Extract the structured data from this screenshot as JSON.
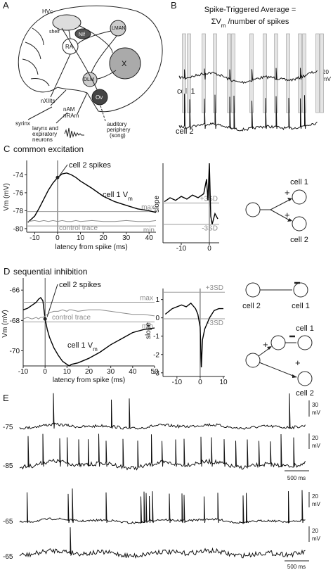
{
  "panel_a": {
    "label": "A",
    "regions": {
      "hvc": "HVc",
      "shelf": "shelf",
      "nif": "NIf",
      "lman": "LMAN",
      "ra": "RA",
      "x": "X",
      "dlm": "DLM",
      "ov": "Ov",
      "nxiits": "nXIIts",
      "nam": "nAM",
      "nram": "nRAm"
    },
    "syrinx": "syrinx",
    "larynx": [
      "larynx and",
      "expiratory",
      "neurons"
    ],
    "auditory": [
      "auditory",
      "periphery",
      "(song)"
    ]
  },
  "panel_b": {
    "label": "B",
    "title": "Spike-Triggered Average =",
    "formula": {
      "main": "ΣV",
      "sub": "m",
      "rest": " /number of spikes"
    },
    "cells": [
      "cell 1",
      "cell 2"
    ],
    "scale": {
      "value": "20",
      "unit": "mV"
    }
  },
  "chart_data": [
    {
      "type": "line",
      "panel": "C",
      "title": "common excitation",
      "annotation": "cell 2 spikes",
      "xlabel": "latency from spike (ms)",
      "ylabel": "Vm (mV)",
      "x": [
        -13,
        -10,
        -8,
        -6,
        -4,
        -2,
        0,
        2,
        4,
        6,
        8,
        10,
        15,
        20,
        25,
        30,
        35,
        40,
        43
      ],
      "series": [
        {
          "name": "cell 1 V",
          "name_subscript": "m",
          "color": "#000000",
          "values": [
            -79.3,
            -78.6,
            -77.7,
            -76.7,
            -75.7,
            -74.9,
            -74.3,
            -73.9,
            -73.8,
            -74.0,
            -74.3,
            -74.7,
            -75.5,
            -76.4,
            -77.0,
            -77.4,
            -77.8,
            -78.0,
            -78.2
          ]
        },
        {
          "name": "control trace",
          "color": "#8c8c8c",
          "values": [
            -79.2,
            -79.1,
            -79.2,
            -79.1,
            -79.2,
            -79.1,
            -79.2,
            -79.1,
            -79.2,
            -79.2,
            -79.1,
            -79.2,
            -79.1,
            -79.2,
            -79.2,
            -79.1,
            -79.2,
            -79.2,
            -79.1
          ]
        }
      ],
      "reference_lines": [
        {
          "value": -78.1,
          "label": "max"
        },
        {
          "value": -79.7,
          "label": "min"
        }
      ],
      "xlim": [
        -13.5,
        43
      ],
      "xticks": [
        -10,
        0,
        10,
        20,
        30,
        40
      ],
      "ylim": [
        -80.4,
        -72.4
      ],
      "yticks": [
        -74,
        -76,
        -78,
        -80
      ]
    },
    {
      "type": "line",
      "ylabel": "slope",
      "x": [
        -16,
        -14,
        -12,
        -10,
        -8,
        -6,
        -4,
        -2,
        -1,
        -0.5,
        0,
        0.5,
        1,
        2,
        3
      ],
      "series": [
        {
          "color": "#000000",
          "values": [
            0.05,
            0.2,
            0.1,
            0.25,
            0.15,
            0.3,
            0.2,
            0.35,
            0.9,
            0.1,
            1.5,
            -0.5,
            -0.8,
            -0.4,
            -0.6
          ]
        }
      ],
      "reference_lines": [
        {
          "value": 0.0,
          "label": "+3SD"
        },
        {
          "value": -0.8,
          "label": "-3SD"
        }
      ],
      "xlim": [
        -16.5,
        3.5
      ],
      "xticks": [
        -10,
        0
      ],
      "ylim": [
        -1.5,
        1.5
      ]
    },
    {
      "type": "line",
      "panel": "D",
      "title": "sequential inhibition",
      "annotation": "cell 2 spikes",
      "xlabel": "latency from spike (ms)",
      "ylabel": "Vm (mV)",
      "x": [
        -10,
        -8,
        -6,
        -4,
        -3,
        -2,
        -1,
        0,
        1,
        2,
        4,
        6,
        8,
        10,
        11,
        12,
        15,
        20,
        25,
        30,
        35,
        40,
        45,
        50
      ],
      "series": [
        {
          "name": "cell 1 V",
          "name_subscript": "m",
          "color": "#000000",
          "values": [
            -67.3,
            -67.2,
            -67.0,
            -66.8,
            -66.6,
            -66.5,
            -66.7,
            -67.9,
            -68.6,
            -69.1,
            -69.8,
            -70.3,
            -70.7,
            -70.9,
            -71.0,
            -70.9,
            -70.8,
            -70.5,
            -70.1,
            -69.6,
            -69.2,
            -68.8,
            -68.6,
            -68.5
          ]
        },
        {
          "name": "control trace",
          "color": "#8c8c8c",
          "values": [
            -67.9,
            -67.8,
            -67.9,
            -67.8,
            -67.9,
            -67.8,
            -67.8,
            -67.7,
            -67.6,
            -67.5,
            -67.4,
            -67.4,
            -67.3,
            -67.4,
            -67.3,
            -67.3,
            -67.4,
            -67.3,
            -67.3,
            -67.4,
            -67.5,
            -67.6,
            -67.6,
            -67.7
          ]
        }
      ],
      "reference_lines": [
        {
          "value": -66.8,
          "label": "max"
        },
        {
          "value": -68.1,
          "label": "min"
        }
      ],
      "xlim": [
        -10,
        50
      ],
      "xticks": [
        -10,
        0,
        10,
        20,
        30,
        40,
        50
      ],
      "ylim": [
        -71.0,
        -65.2
      ],
      "yticks": [
        -66,
        -68,
        -70
      ]
    },
    {
      "type": "line",
      "ylabel": "slope",
      "x": [
        -15,
        -12,
        -10,
        -8,
        -6,
        -4,
        -2,
        -1,
        0,
        0.5,
        1,
        2,
        3,
        4,
        6,
        8,
        10
      ],
      "series": [
        {
          "color": "#000000",
          "values": [
            0.2,
            0.5,
            0.6,
            0.7,
            0.6,
            0.8,
            0.5,
            0.2,
            -0.5,
            -2.7,
            -1.2,
            -0.6,
            -0.3,
            0.0,
            0.4,
            0.5,
            0.5
          ]
        }
      ],
      "reference_lines": [
        {
          "value": 1.4,
          "label": "+3SD"
        },
        {
          "value": -0.05,
          "label": "-3SD"
        }
      ],
      "xlim": [
        -16,
        10.6
      ],
      "xticks": [
        -10,
        0,
        10
      ],
      "ylim": [
        -3.2,
        1.6
      ],
      "yticks": [
        1,
        0,
        -1,
        -2,
        -3
      ]
    }
  ],
  "diagram_c": {
    "cells": [
      "cell 1",
      "cell 2"
    ],
    "signs": [
      "+",
      "+"
    ]
  },
  "diagram_d": {
    "top": [
      "cell 2",
      "cell 1"
    ],
    "bottom": [
      "cell 1",
      "cell 2"
    ],
    "signs": [
      "+",
      "+"
    ]
  },
  "panel_e": {
    "label": "E",
    "traces": [
      {
        "level": -75,
        "scale": "30",
        "unit": "mV"
      },
      {
        "level": -85,
        "scale": "20",
        "unit": "mV"
      },
      {
        "level": -65,
        "scale": "20",
        "unit": "mV"
      },
      {
        "level": -65,
        "scale": "20",
        "unit": "mV"
      }
    ],
    "time_bars": [
      "500 ms",
      "500 ms"
    ]
  }
}
